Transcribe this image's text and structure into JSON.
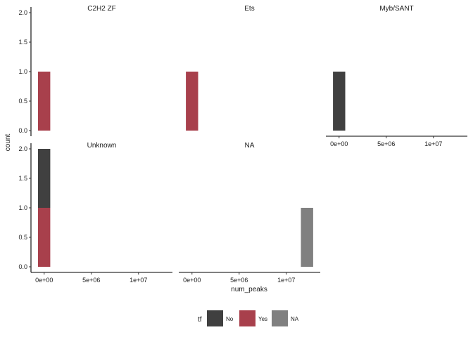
{
  "chart_data": {
    "type": "bar",
    "subtype": "faceted-stacked-histogram",
    "xlabel": "num_peaks",
    "ylabel": "count",
    "ylim": [
      0,
      2
    ],
    "yticks": [
      "0.0",
      "0.5",
      "1.0",
      "1.5",
      "2.0"
    ],
    "xticks": [
      "0e+00",
      "5e+06",
      "1e+07"
    ],
    "xtick_values": [
      0,
      5000000,
      10000000
    ],
    "xlim": [
      -1400000,
      13600000
    ],
    "bin_width": 1300000,
    "fill_legend": {
      "title": "tf",
      "entries": [
        {
          "key": "No",
          "label": "No",
          "color": "#404040"
        },
        {
          "key": "Yes",
          "label": "Yes",
          "color": "#A8404C"
        },
        {
          "key": "NA",
          "label": "NA",
          "color": "#808080"
        }
      ]
    },
    "panels": [
      {
        "label": "C2H2 ZF",
        "bars": [
          {
            "x": 0,
            "segments": [
              {
                "tf": "Yes",
                "count": 1
              }
            ]
          }
        ]
      },
      {
        "label": "Ets",
        "bars": [
          {
            "x": 0,
            "segments": [
              {
                "tf": "Yes",
                "count": 1
              }
            ]
          }
        ]
      },
      {
        "label": "Myb/SANT",
        "bars": [
          {
            "x": 0,
            "segments": [
              {
                "tf": "No",
                "count": 1
              }
            ]
          }
        ]
      },
      {
        "label": "Unknown",
        "bars": [
          {
            "x": 0,
            "segments": [
              {
                "tf": "Yes",
                "count": 1
              },
              {
                "tf": "No",
                "count": 1
              }
            ]
          }
        ]
      },
      {
        "label": "NA",
        "bars": [
          {
            "x": 12200000,
            "segments": [
              {
                "tf": "NA",
                "count": 1
              }
            ]
          }
        ]
      }
    ]
  }
}
